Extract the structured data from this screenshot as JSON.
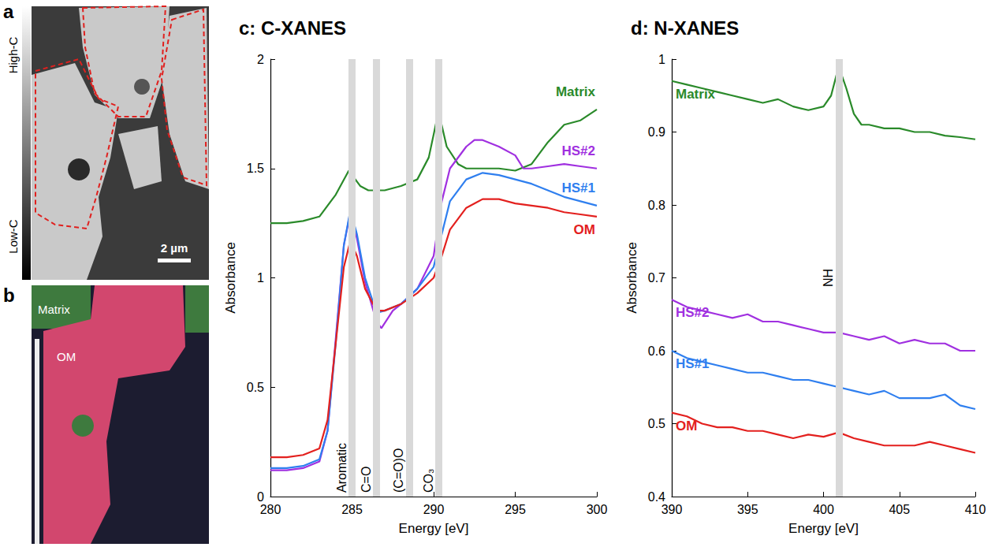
{
  "chart_data": [
    {
      "type": "line",
      "title": "c: C-XANES",
      "xlabel": "Energy [eV]",
      "ylabel": "Absorbance",
      "xlim": [
        280,
        300
      ],
      "xticks": [
        280,
        285,
        290,
        295,
        300
      ],
      "ylim": [
        0,
        2
      ],
      "yticks": [
        0,
        0.5,
        1,
        1.5,
        2
      ],
      "grid": false,
      "annotations": [
        {
          "text": "Aromatic",
          "x": 285
        },
        {
          "text": "C=O",
          "x": 286.5
        },
        {
          "text": "(C=O)O",
          "x": 288.5
        },
        {
          "text": "CO₃",
          "x": 290.3
        }
      ],
      "series": [
        {
          "name": "Matrix",
          "color": "#2a8a2a",
          "x": [
            280,
            281,
            282,
            283,
            284,
            284.8,
            285.5,
            286,
            287,
            288,
            289,
            289.7,
            290.3,
            290.8,
            291.5,
            292,
            293,
            294,
            295,
            296,
            297,
            298,
            299,
            300
          ],
          "values": [
            1.25,
            1.25,
            1.26,
            1.28,
            1.38,
            1.49,
            1.42,
            1.4,
            1.4,
            1.42,
            1.45,
            1.55,
            1.76,
            1.6,
            1.52,
            1.5,
            1.5,
            1.5,
            1.49,
            1.52,
            1.62,
            1.7,
            1.72,
            1.77
          ]
        },
        {
          "name": "HS#2",
          "color": "#a030e0",
          "x": [
            280,
            281,
            282,
            283,
            283.5,
            284,
            284.5,
            284.9,
            285.3,
            285.8,
            286.5,
            286.8,
            287.5,
            288,
            289,
            290,
            290.5,
            291,
            292,
            292.5,
            293,
            294,
            295,
            295.5,
            296,
            297,
            298,
            299,
            300
          ],
          "values": [
            0.12,
            0.12,
            0.13,
            0.16,
            0.3,
            0.72,
            1.15,
            1.3,
            1.18,
            0.98,
            0.8,
            0.77,
            0.85,
            0.88,
            0.95,
            1.1,
            1.35,
            1.5,
            1.6,
            1.63,
            1.63,
            1.6,
            1.56,
            1.5,
            1.5,
            1.51,
            1.52,
            1.51,
            1.5
          ]
        },
        {
          "name": "HS#1",
          "color": "#2f7fef",
          "x": [
            280,
            281,
            282,
            283,
            283.5,
            284,
            284.5,
            284.9,
            285.3,
            285.8,
            286.5,
            287,
            288,
            289,
            290,
            290.5,
            291,
            292,
            293,
            294,
            295,
            296,
            297,
            298,
            299,
            300
          ],
          "values": [
            0.13,
            0.13,
            0.14,
            0.17,
            0.3,
            0.7,
            1.15,
            1.31,
            1.2,
            1.0,
            0.84,
            0.85,
            0.88,
            0.95,
            1.05,
            1.2,
            1.35,
            1.45,
            1.48,
            1.47,
            1.45,
            1.43,
            1.4,
            1.37,
            1.35,
            1.33
          ]
        },
        {
          "name": "OM",
          "color": "#e3201e",
          "x": [
            280,
            281,
            282,
            283,
            283.5,
            284,
            284.5,
            284.9,
            285.3,
            285.8,
            286.5,
            287,
            288,
            289,
            290,
            290.5,
            291,
            292,
            293,
            294,
            295,
            296,
            297,
            298,
            299,
            300
          ],
          "values": [
            0.18,
            0.18,
            0.19,
            0.22,
            0.35,
            0.7,
            1.05,
            1.17,
            1.1,
            0.95,
            0.85,
            0.85,
            0.88,
            0.93,
            1.0,
            1.1,
            1.22,
            1.32,
            1.36,
            1.36,
            1.34,
            1.33,
            1.32,
            1.3,
            1.29,
            1.28
          ]
        }
      ]
    },
    {
      "type": "line",
      "title": "d: N-XANES",
      "xlabel": "Energy [eV]",
      "ylabel": "Absorbance",
      "xlim": [
        390,
        410
      ],
      "xticks": [
        390,
        395,
        400,
        405,
        410
      ],
      "ylim": [
        0.4,
        1
      ],
      "yticks": [
        0.4,
        0.5,
        0.6,
        0.7,
        0.8,
        0.9,
        1
      ],
      "grid": false,
      "annotations": [
        {
          "text": "NH",
          "x": 401
        }
      ],
      "series": [
        {
          "name": "Matrix",
          "color": "#2a8a2a",
          "x": [
            390,
            391,
            392,
            393,
            394,
            395,
            396,
            397,
            398,
            399,
            400,
            400.5,
            401,
            401.5,
            402,
            402.5,
            403,
            404,
            405,
            406,
            407,
            408,
            409,
            410
          ],
          "values": [
            0.97,
            0.965,
            0.96,
            0.955,
            0.95,
            0.945,
            0.94,
            0.945,
            0.935,
            0.93,
            0.935,
            0.95,
            0.99,
            0.96,
            0.925,
            0.91,
            0.91,
            0.905,
            0.905,
            0.9,
            0.9,
            0.895,
            0.893,
            0.89
          ]
        },
        {
          "name": "HS#2",
          "color": "#a030e0",
          "x": [
            390,
            391,
            392,
            393,
            394,
            395,
            396,
            397,
            398,
            399,
            400,
            401,
            402,
            403,
            404,
            405,
            406,
            407,
            408,
            409,
            410
          ],
          "values": [
            0.67,
            0.66,
            0.655,
            0.65,
            0.645,
            0.65,
            0.64,
            0.64,
            0.635,
            0.63,
            0.625,
            0.625,
            0.62,
            0.615,
            0.62,
            0.61,
            0.615,
            0.61,
            0.61,
            0.6,
            0.6
          ]
        },
        {
          "name": "HS#1",
          "color": "#2f7fef",
          "x": [
            390,
            391,
            392,
            393,
            394,
            395,
            396,
            397,
            398,
            399,
            400,
            401,
            402,
            403,
            404,
            405,
            406,
            407,
            408,
            409,
            410
          ],
          "values": [
            0.6,
            0.59,
            0.585,
            0.58,
            0.575,
            0.57,
            0.57,
            0.565,
            0.56,
            0.56,
            0.555,
            0.55,
            0.545,
            0.54,
            0.545,
            0.535,
            0.535,
            0.535,
            0.54,
            0.525,
            0.52
          ]
        },
        {
          "name": "OM",
          "color": "#e3201e",
          "x": [
            390,
            391,
            392,
            393,
            394,
            395,
            396,
            397,
            398,
            399,
            400,
            401,
            402,
            403,
            404,
            405,
            406,
            407,
            408,
            409,
            410
          ],
          "values": [
            0.515,
            0.51,
            0.5,
            0.495,
            0.495,
            0.49,
            0.49,
            0.485,
            0.48,
            0.485,
            0.482,
            0.488,
            0.48,
            0.475,
            0.47,
            0.47,
            0.47,
            0.475,
            0.47,
            0.465,
            0.46
          ]
        }
      ]
    }
  ],
  "image_panels": [
    {
      "letter": "a",
      "colorbar": {
        "top": "High-C",
        "bottom": "Low-C"
      },
      "scale_bar": "2 µm"
    },
    {
      "letter": "b",
      "labels": [
        "Matrix",
        "OM"
      ]
    }
  ]
}
